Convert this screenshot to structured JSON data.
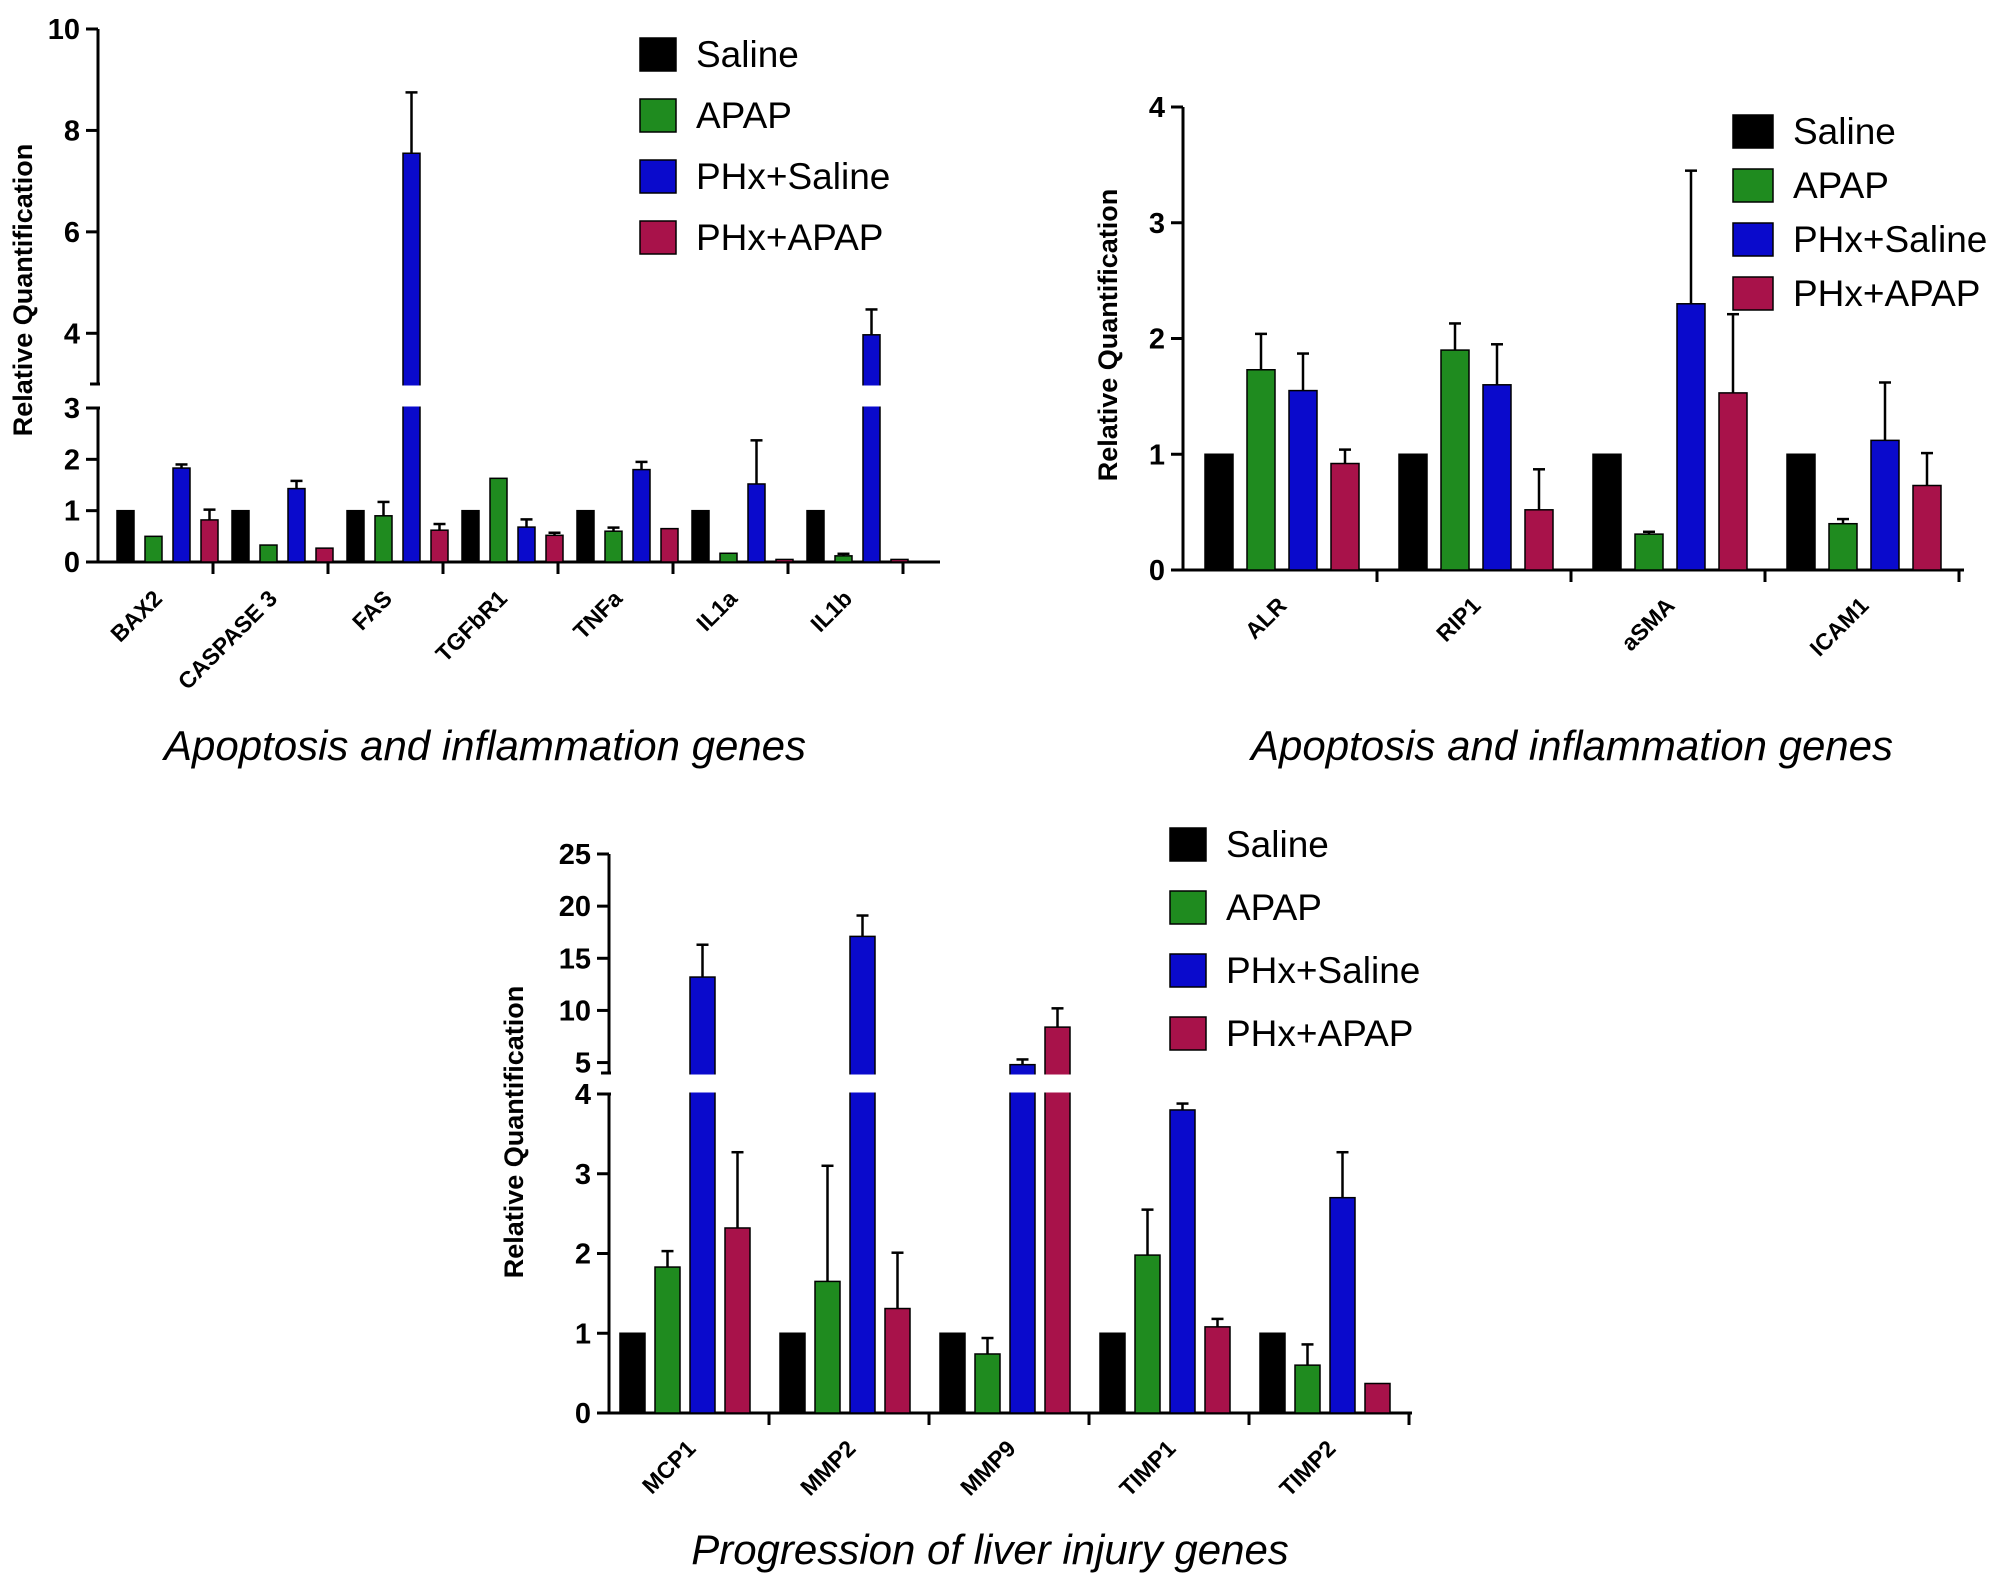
{
  "figure": {
    "series_names": [
      "Saline",
      "APAP",
      "PHx+Saline",
      "PHx+APAP"
    ],
    "colors": [
      "#000000",
      "#1f8b1f",
      "#0a0acc",
      "#a8124a"
    ]
  },
  "chart_data": [
    {
      "id": "apoptosis-1",
      "type": "bar",
      "title": "Apoptosis and inflammation genes",
      "ylabel": "Relative Quantification",
      "xlabel": "",
      "axis_break": {
        "lower_range": [
          0,
          3
        ],
        "upper_range": [
          3,
          10
        ]
      },
      "yticks_lower": [
        "0",
        "1",
        "2",
        "3"
      ],
      "yticks_upper": [
        "4",
        "6",
        "8",
        "10"
      ],
      "categories": [
        "BAX2",
        "CASPASE 3",
        "FAS",
        "TGFbR1",
        "TNFa",
        "IL1a",
        "IL1b"
      ],
      "series": [
        {
          "name": "Saline",
          "values": [
            1,
            1,
            1,
            1,
            1,
            1,
            1
          ],
          "errors": [
            0,
            0,
            0,
            0,
            0,
            0,
            0
          ]
        },
        {
          "name": "APAP",
          "values": [
            0.5,
            0.33,
            0.9,
            1.63,
            0.6,
            0.17,
            0.12
          ],
          "errors": [
            0,
            0,
            0.27,
            0,
            0.07,
            0,
            0.04
          ]
        },
        {
          "name": "PHx+Saline",
          "values": [
            1.83,
            1.43,
            7.55,
            0.68,
            1.8,
            1.52,
            3.97
          ],
          "errors": [
            0.07,
            0.15,
            1.2,
            0.15,
            0.15,
            0.85,
            0.5
          ]
        },
        {
          "name": "PHx+APAP",
          "values": [
            0.82,
            0.27,
            0.62,
            0.52,
            0.65,
            0.05,
            0.05
          ],
          "errors": [
            0.2,
            0,
            0.12,
            0.05,
            0,
            0,
            0
          ]
        }
      ],
      "legend": "top-right"
    },
    {
      "id": "apoptosis-2",
      "type": "bar",
      "title": "Apoptosis and inflammation genes",
      "ylabel": "Relative Quantification",
      "xlabel": "",
      "ylim": [
        0,
        4
      ],
      "yticks": [
        "0",
        "1",
        "2",
        "3",
        "4"
      ],
      "categories": [
        "ALR",
        "RIP1",
        "aSMA",
        "ICAM1"
      ],
      "series": [
        {
          "name": "Saline",
          "values": [
            1,
            1,
            1,
            1
          ],
          "errors": [
            0,
            0,
            0,
            0
          ]
        },
        {
          "name": "APAP",
          "values": [
            1.73,
            1.9,
            0.31,
            0.4
          ],
          "errors": [
            0.31,
            0.23,
            0.02,
            0.04
          ]
        },
        {
          "name": "PHx+Saline",
          "values": [
            1.55,
            1.6,
            2.3,
            1.12
          ],
          "errors": [
            0.32,
            0.35,
            1.15,
            0.5
          ]
        },
        {
          "name": "PHx+APAP",
          "values": [
            0.92,
            0.52,
            1.53,
            0.73
          ],
          "errors": [
            0.12,
            0.35,
            0.68,
            0.28
          ]
        }
      ],
      "legend": "top-right"
    },
    {
      "id": "liver-injury",
      "type": "bar",
      "title": "Progression of liver injury genes",
      "ylabel": "Relative Quantification",
      "xlabel": "",
      "axis_break": {
        "lower_range": [
          0,
          4
        ],
        "upper_range": [
          4,
          25
        ]
      },
      "yticks_lower": [
        "0",
        "1",
        "2",
        "3",
        "4"
      ],
      "yticks_upper": [
        "5",
        "10",
        "15",
        "20",
        "25"
      ],
      "categories": [
        "MCP1",
        "MMP2",
        "MMP9",
        "TIMP1",
        "TIMP2"
      ],
      "series": [
        {
          "name": "Saline",
          "values": [
            1,
            1,
            1,
            1,
            1
          ],
          "errors": [
            0,
            0,
            0,
            0,
            0
          ]
        },
        {
          "name": "APAP",
          "values": [
            1.83,
            1.65,
            0.74,
            1.98,
            0.6
          ],
          "errors": [
            0.2,
            1.45,
            0.2,
            0.57,
            0.26
          ]
        },
        {
          "name": "PHx+Saline",
          "values": [
            13.2,
            17.1,
            4.8,
            3.8,
            2.7
          ],
          "errors": [
            3.1,
            2.0,
            0.5,
            0.08,
            0.57
          ]
        },
        {
          "name": "PHx+APAP",
          "values": [
            2.32,
            1.31,
            8.4,
            1.08,
            0.37
          ],
          "errors": [
            0.95,
            0.7,
            1.8,
            0.1,
            0
          ]
        }
      ],
      "legend": "top-right"
    }
  ]
}
